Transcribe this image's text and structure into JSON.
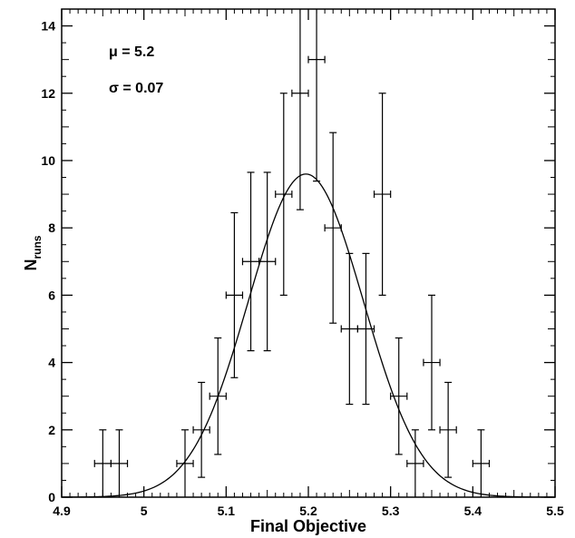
{
  "chart_data": {
    "type": "scatter",
    "title": "",
    "xlabel": "Final Objective",
    "ylabel": {
      "main": "N",
      "sub": "runs"
    },
    "xlim": [
      4.9,
      5.5
    ],
    "ylim": [
      0,
      14.5
    ],
    "x_ticks": [
      "4.9",
      "5",
      "5.1",
      "5.2",
      "5.3",
      "5.4",
      "5.5"
    ],
    "y_ticks": [
      "0",
      "2",
      "4",
      "6",
      "8",
      "10",
      "12",
      "14"
    ],
    "x_tick_values": [
      4.9,
      5.0,
      5.1,
      5.2,
      5.3,
      5.4,
      5.5
    ],
    "y_tick_values": [
      0,
      2,
      4,
      6,
      8,
      10,
      12,
      14
    ],
    "bin_halfwidth": 0.01,
    "grid": false,
    "annotations": {
      "mu": "μ = 5.2",
      "sigma": "σ = 0.07"
    },
    "gaussian_fit": {
      "mu": 5.197,
      "sigma": 0.07,
      "amplitude": 9.6
    },
    "series": [
      {
        "type": "errorbar",
        "points": [
          {
            "x": 4.95,
            "y": 1,
            "err": 1
          },
          {
            "x": 4.97,
            "y": 1,
            "err": 1
          },
          {
            "x": 5.05,
            "y": 1,
            "err": 1
          },
          {
            "x": 5.07,
            "y": 2,
            "err": 1.41
          },
          {
            "x": 5.09,
            "y": 3,
            "err": 1.73
          },
          {
            "x": 5.11,
            "y": 6,
            "err": 2.45
          },
          {
            "x": 5.13,
            "y": 7,
            "err": 2.65
          },
          {
            "x": 5.15,
            "y": 7,
            "err": 2.65
          },
          {
            "x": 5.17,
            "y": 9,
            "err": 3
          },
          {
            "x": 5.19,
            "y": 12,
            "err": 3.46
          },
          {
            "x": 5.21,
            "y": 13,
            "err": 3.61
          },
          {
            "x": 5.23,
            "y": 8,
            "err": 2.83
          },
          {
            "x": 5.25,
            "y": 5,
            "err": 2.24
          },
          {
            "x": 5.27,
            "y": 5,
            "err": 2.24
          },
          {
            "x": 5.29,
            "y": 9,
            "err": 3
          },
          {
            "x": 5.31,
            "y": 3,
            "err": 1.73
          },
          {
            "x": 5.33,
            "y": 1,
            "err": 1
          },
          {
            "x": 5.35,
            "y": 4,
            "err": 2
          },
          {
            "x": 5.37,
            "y": 2,
            "err": 1.41
          },
          {
            "x": 5.41,
            "y": 1,
            "err": 1
          }
        ]
      }
    ]
  }
}
